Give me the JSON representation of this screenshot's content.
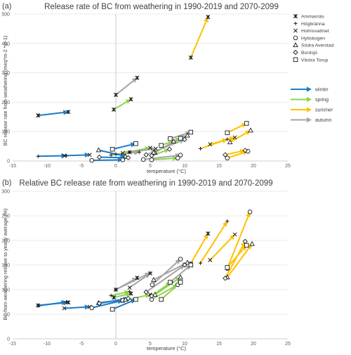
{
  "figure": {
    "panels": [
      {
        "tag": "(a)",
        "title": "Release rate of BC from weathering in 1990-2019 and 2070-2099",
        "ylabel": "BC release rate from weathering (meq*m-2 *yr-1)",
        "xlabel": "temperature (°C)"
      },
      {
        "tag": "(b)",
        "title": "Relative BC release rate from weathering",
        "title_rest": " in 1990-2019 and 2070-2099",
        "ylabel": "BC from weathering relative to yearly average (%)",
        "xlabel": "temperature (°C)"
      }
    ],
    "legend_sites": [
      "Ammarnäs",
      "Högbränna",
      "Holmsvattnet",
      "Hyttskogen",
      "Södra Averstad",
      "Bordsjö",
      "Västra Torup"
    ],
    "legend_seasons": [
      "winter",
      "spring",
      "summer",
      "autumn"
    ]
  },
  "colors": {
    "winter": "#1f7bc4",
    "spring": "#8fd14f",
    "summer": "#ffc000",
    "autumn": "#a5a5a5"
  },
  "chart_data": [
    {
      "type": "scatter",
      "title": "Release rate of BC from weathering in 1990-2019 and 2070-2099",
      "xlabel": "temperature (°C)",
      "ylabel": "BC release rate from weathering (meq*m-2 *yr-1)",
      "xlim": [
        -15,
        25
      ],
      "ylim": [
        0,
        500
      ],
      "xticks": [
        -15,
        -10,
        -5,
        0,
        5,
        10,
        15,
        20,
        25
      ],
      "yticks": [
        0,
        100,
        200,
        300,
        400,
        500
      ],
      "grid": "horizontal",
      "legend": "right",
      "series": [
        {
          "name": "Ammarnäs",
          "marker": "asterisk",
          "seasons": [
            {
              "season": "winter",
              "from": [
                -11.3,
                155
              ],
              "to": [
                -6.9,
                167
              ]
            },
            {
              "season": "spring",
              "from": [
                -0.3,
                175
              ],
              "to": [
                2.2,
                210
              ]
            },
            {
              "season": "summer",
              "from": [
                10.9,
                352
              ],
              "to": [
                13.4,
                490
              ]
            },
            {
              "season": "autumn",
              "from": [
                0.0,
                225
              ],
              "to": [
                3.1,
                283
              ]
            }
          ]
        },
        {
          "name": "Högbränna",
          "marker": "plus",
          "seasons": [
            {
              "season": "winter",
              "from": [
                -11.3,
                16
              ],
              "to": [
                -7.2,
                18
              ]
            },
            {
              "season": "spring",
              "from": [
                -0.7,
                20
              ],
              "to": [
                2.0,
                30
              ]
            },
            {
              "season": "summer",
              "from": [
                12.3,
                42
              ],
              "to": [
                16.2,
                74
              ]
            },
            {
              "season": "autumn",
              "from": [
                0.0,
                23
              ],
              "to": [
                3.4,
                30
              ]
            }
          ]
        },
        {
          "name": "Holmsvattnet",
          "marker": "x",
          "seasons": [
            {
              "season": "winter",
              "from": [
                -7.5,
                18
              ],
              "to": [
                -3.8,
                21
              ]
            },
            {
              "season": "spring",
              "from": [
                1.0,
                27
              ],
              "to": [
                5.0,
                45
              ]
            },
            {
              "season": "summer",
              "from": [
                13.7,
                57
              ],
              "to": [
                17.3,
                80
              ]
            },
            {
              "season": "autumn",
              "from": [
                2.0,
                30
              ],
              "to": [
                5.8,
                42
              ]
            }
          ]
        },
        {
          "name": "Hyttskogen",
          "marker": "circle",
          "seasons": [
            {
              "season": "winter",
              "from": [
                -3.5,
                2
              ],
              "to": [
                1.0,
                4
              ]
            },
            {
              "season": "spring",
              "from": [
                5.2,
                4
              ],
              "to": [
                9.0,
                10
              ]
            },
            {
              "season": "summer",
              "from": [
                16.2,
                10
              ],
              "to": [
                19.2,
                33
              ]
            },
            {
              "season": "autumn",
              "from": [
                4.0,
                5
              ],
              "to": [
                9.4,
                20
              ]
            }
          ]
        },
        {
          "name": "Södra Averstad",
          "marker": "triangle",
          "seasons": [
            {
              "season": "winter",
              "from": [
                -2.5,
                37
              ],
              "to": [
                1.4,
                16
              ]
            },
            {
              "season": "spring",
              "from": [
                5.7,
                28
              ],
              "to": [
                8.4,
                67
              ]
            },
            {
              "season": "summer",
              "from": [
                16.6,
                64
              ],
              "to": [
                19.6,
                104
              ]
            },
            {
              "season": "autumn",
              "from": [
                5.5,
                29
              ],
              "to": [
                10.4,
                87
              ]
            }
          ]
        },
        {
          "name": "Bordsjö",
          "marker": "diamond",
          "seasons": [
            {
              "season": "winter",
              "from": [
                -2.4,
                13
              ],
              "to": [
                1.8,
                11
              ]
            },
            {
              "season": "spring",
              "from": [
                5.2,
                18
              ],
              "to": [
                7.8,
                40
              ]
            },
            {
              "season": "summer",
              "from": [
                15.9,
                21
              ],
              "to": [
                18.8,
                36
              ]
            },
            {
              "season": "autumn",
              "from": [
                4.4,
                21
              ],
              "to": [
                10.0,
                73
              ]
            }
          ]
        },
        {
          "name": "Västra Torup",
          "marker": "square",
          "seasons": [
            {
              "season": "winter",
              "from": [
                -0.5,
                40
              ],
              "to": [
                2.9,
                59
              ]
            },
            {
              "season": "spring",
              "from": [
                6.6,
                53
              ],
              "to": [
                9.4,
                77
              ]
            },
            {
              "season": "summer",
              "from": [
                16.2,
                96
              ],
              "to": [
                19.0,
                128
              ]
            },
            {
              "season": "autumn",
              "from": [
                7.9,
                76
              ],
              "to": [
                10.9,
                98
              ]
            }
          ]
        }
      ]
    },
    {
      "type": "scatter",
      "title": "Relative BC release rate from weathering in 1990-2019 and 2070-2099",
      "xlabel": "temperature (°C)",
      "ylabel": "BC from weathering relative to yearly average (%)",
      "xlim": [
        -15,
        25
      ],
      "ylim": [
        0,
        300
      ],
      "xticks": [
        -15,
        -10,
        -5,
        0,
        5,
        10,
        15,
        20,
        25
      ],
      "yticks": [
        0,
        50,
        100,
        150,
        200,
        250,
        300
      ],
      "grid": "horizontal",
      "series": [
        {
          "name": "Ammarnäs",
          "marker": "asterisk",
          "seasons": [
            {
              "season": "winter",
              "from": [
                -11.3,
                68
              ],
              "to": [
                -6.9,
                74
              ]
            },
            {
              "season": "spring",
              "from": [
                -0.3,
                84
              ],
              "to": [
                2.2,
                92
              ]
            },
            {
              "season": "summer",
              "from": [
                10.9,
                153
              ],
              "to": [
                13.4,
                214
              ]
            },
            {
              "season": "autumn",
              "from": [
                0.0,
                100
              ],
              "to": [
                3.1,
                124
              ]
            }
          ]
        },
        {
          "name": "Högbränna",
          "marker": "plus",
          "seasons": [
            {
              "season": "winter",
              "from": [
                -11.3,
                67
              ],
              "to": [
                -7.2,
                75
              ]
            },
            {
              "season": "spring",
              "from": [
                -0.7,
                88
              ],
              "to": [
                2.0,
                96
              ]
            },
            {
              "season": "summer",
              "from": [
                12.3,
                154
              ],
              "to": [
                16.2,
                239
              ]
            },
            {
              "season": "autumn",
              "from": [
                0.0,
                100
              ],
              "to": [
                5.0,
                134
              ]
            }
          ]
        },
        {
          "name": "Holmsvattnet",
          "marker": "x",
          "seasons": [
            {
              "season": "winter",
              "from": [
                -7.5,
                62
              ],
              "to": [
                -3.8,
                65
              ]
            },
            {
              "season": "spring",
              "from": [
                1.0,
                77
              ],
              "to": [
                5.0,
                90
              ]
            },
            {
              "season": "summer",
              "from": [
                13.7,
                160
              ],
              "to": [
                17.3,
                212
              ]
            },
            {
              "season": "autumn",
              "from": [
                2.0,
                104
              ],
              "to": [
                5.0,
                133
              ]
            }
          ]
        },
        {
          "name": "Hyttskogen",
          "marker": "circle",
          "seasons": [
            {
              "season": "winter",
              "from": [
                -3.5,
                63
              ],
              "to": [
                1.0,
                78
              ]
            },
            {
              "season": "spring",
              "from": [
                5.2,
                80
              ],
              "to": [
                9.0,
                110
              ]
            },
            {
              "season": "summer",
              "from": [
                16.2,
                143
              ],
              "to": [
                19.5,
                258
              ]
            },
            {
              "season": "autumn",
              "from": [
                5.3,
                110
              ],
              "to": [
                9.4,
                162
              ]
            }
          ]
        },
        {
          "name": "Södra Averstad",
          "marker": "triangle",
          "seasons": [
            {
              "season": "winter",
              "from": [
                -2.5,
                73
              ],
              "to": [
                1.4,
                80
              ]
            },
            {
              "season": "spring",
              "from": [
                5.7,
                90
              ],
              "to": [
                9.4,
                125
              ]
            },
            {
              "season": "summer",
              "from": [
                16.2,
                125
              ],
              "to": [
                19.8,
                193
              ]
            },
            {
              "season": "autumn",
              "from": [
                5.5,
                120
              ],
              "to": [
                10.4,
                155
              ]
            }
          ]
        },
        {
          "name": "Bordsjö",
          "marker": "diamond",
          "seasons": [
            {
              "season": "winter",
              "from": [
                -2.4,
                72
              ],
              "to": [
                1.8,
                82
              ]
            },
            {
              "season": "spring",
              "from": [
                5.2,
                87
              ],
              "to": [
                8.0,
                115
              ]
            },
            {
              "season": "summer",
              "from": [
                15.9,
                123
              ],
              "to": [
                18.8,
                198
              ]
            },
            {
              "season": "autumn",
              "from": [
                4.4,
                95
              ],
              "to": [
                10.0,
                150
              ]
            }
          ]
        },
        {
          "name": "Västra Torup",
          "marker": "square",
          "seasons": [
            {
              "season": "winter",
              "from": [
                -0.5,
                60
              ],
              "to": [
                2.9,
                80
              ]
            },
            {
              "season": "spring",
              "from": [
                6.6,
                80
              ],
              "to": [
                9.4,
                115
              ]
            },
            {
              "season": "summer",
              "from": [
                16.2,
                145
              ],
              "to": [
                19.0,
                190
              ]
            },
            {
              "season": "autumn",
              "from": [
                7.9,
                115
              ],
              "to": [
                10.9,
                150
              ]
            }
          ]
        }
      ]
    }
  ]
}
